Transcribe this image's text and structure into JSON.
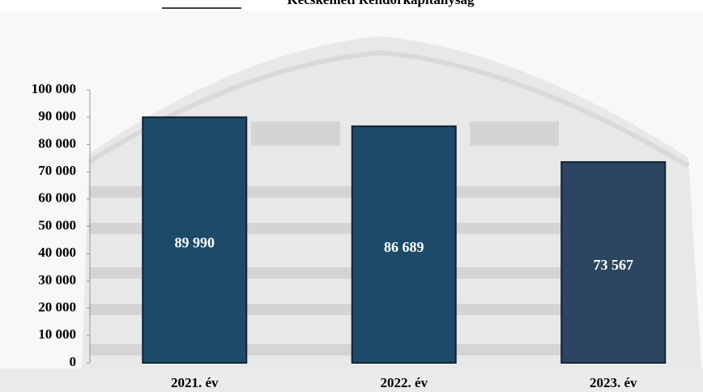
{
  "chart_data": {
    "type": "bar",
    "title": "Kecskeméti Rendőrkapitányság",
    "categories": [
      "2021. év",
      "2022. év",
      "2023. év"
    ],
    "values": [
      89990,
      86689,
      73567
    ],
    "value_labels": [
      "89 990",
      "86 689",
      "73 567"
    ],
    "colors": [
      "#1d4a68",
      "#1d4a68",
      "#2c4560"
    ],
    "ylim": [
      0,
      100000
    ],
    "yticks": [
      0,
      {
        "value": 10000,
        "label": "10 000"
      },
      {
        "value": 20000,
        "label": "20 000"
      },
      {
        "value": 30000,
        "label": "30 000"
      },
      {
        "value": 40000,
        "label": "40 000"
      },
      {
        "value": 50000,
        "label": "50 000"
      },
      {
        "value": 60000,
        "label": "60 000"
      },
      {
        "value": 70000,
        "label": "70 000"
      },
      {
        "value": 80000,
        "label": "80 000"
      },
      {
        "value": 90000,
        "label": "90 000"
      },
      {
        "value": 100000,
        "label": "100 000"
      }
    ],
    "grid": false
  }
}
